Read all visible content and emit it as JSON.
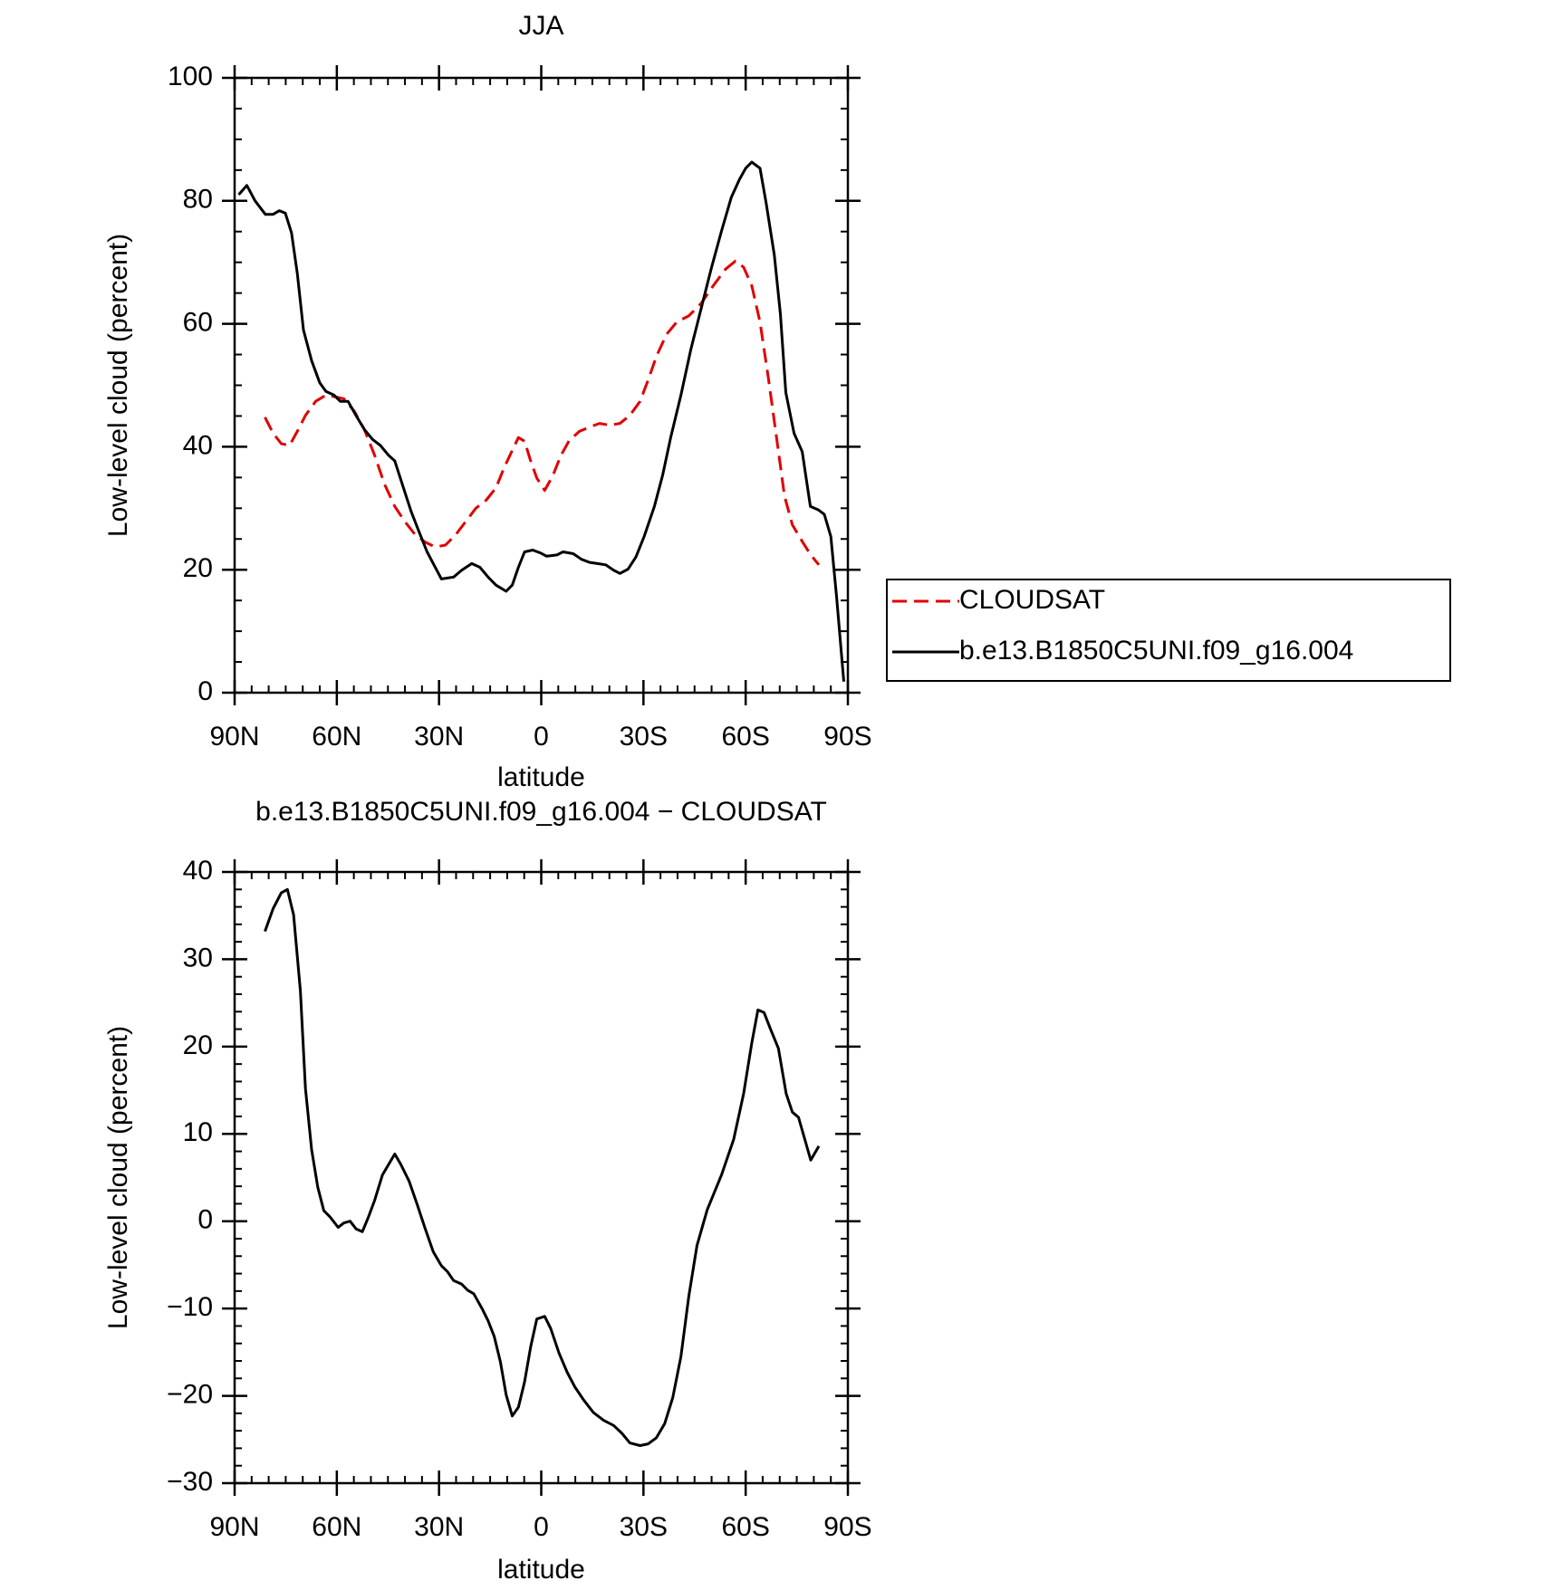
{
  "chart_data": [
    {
      "type": "line",
      "title": "JJA",
      "xlabel": "latitude",
      "ylabel": "Low-level cloud (percent)",
      "xlim": [
        90,
        -90
      ],
      "xticks": [
        {
          "value": 90,
          "label": "90N"
        },
        {
          "value": 60,
          "label": "60N"
        },
        {
          "value": 30,
          "label": "30N"
        },
        0,
        {
          "value": -30,
          "label": "30S"
        },
        {
          "value": -60,
          "label": "60S"
        },
        {
          "value": -90,
          "label": "90S"
        }
      ],
      "ylim": [
        0,
        100
      ],
      "yticks": [
        0,
        20,
        40,
        60,
        80,
        100
      ],
      "legend": "right",
      "series": [
        {
          "name": "CLOUDSAT",
          "color": "#e00000",
          "linestyle": "dashed",
          "x": [
            81.1,
            78.7,
            76.3,
            73.9,
            71.6,
            69.2,
            66.2,
            63.2,
            60.2,
            57.9,
            54.9,
            51.9,
            48.9,
            46,
            43,
            40,
            37,
            34.1,
            31.1,
            28.1,
            25.1,
            22.2,
            19.2,
            16.2,
            13.3,
            10.9,
            8.5,
            6.7,
            4.9,
            3.1,
            1.3,
            -1,
            -3.4,
            -5.8,
            -8.2,
            -11.2,
            -14.2,
            -17.1,
            -20.1,
            -23.1,
            -26,
            -29,
            -31.4,
            -33.8,
            -36.8,
            -39.8,
            -43.3,
            -46.9,
            -50.5,
            -54.1,
            -57,
            -59.4,
            -61.8,
            -64.2,
            -66.6,
            -69,
            -71.4,
            -73.7,
            -76.7,
            -79.1,
            -81.5
          ],
          "values": [
            44.8,
            42.2,
            40.5,
            40.2,
            42.5,
            45.1,
            47.4,
            48.4,
            48.1,
            47.8,
            45.8,
            42.8,
            38.6,
            33.9,
            30.3,
            27.8,
            25.7,
            24.5,
            23.7,
            24,
            25.7,
            27.8,
            30,
            31.3,
            33.3,
            36.6,
            39.4,
            41.5,
            40.9,
            37.7,
            34.9,
            32.9,
            35.3,
            38.6,
            41,
            42.5,
            43.2,
            43.8,
            43.5,
            43.8,
            45.1,
            47.4,
            50.9,
            54.7,
            58.3,
            60.3,
            61.3,
            63.3,
            66.2,
            68.9,
            70.2,
            69.2,
            66.2,
            60.3,
            51.4,
            41.8,
            32,
            27.3,
            24.5,
            22.4,
            20.8
          ]
        },
        {
          "name": "b.e13.B1850C5UNI.f09_g16.004",
          "color": "#000000",
          "linestyle": "solid",
          "x": [
            88.8,
            86.4,
            84,
            81,
            78.7,
            76.9,
            75.1,
            73.3,
            71.6,
            69.8,
            67.4,
            65,
            63.2,
            60.8,
            59,
            56.7,
            54.3,
            51.9,
            49.5,
            47.2,
            44.8,
            43,
            40.6,
            38.2,
            35.9,
            33.5,
            31.7,
            29.3,
            25.7,
            23.4,
            20.4,
            18,
            15.6,
            13.3,
            10.3,
            8.5,
            6.7,
            4.9,
            2.5,
            0.1,
            -1.6,
            -4.6,
            -6.4,
            -9.4,
            -11.8,
            -14.2,
            -16.5,
            -18.9,
            -21.3,
            -23.1,
            -25.5,
            -27.8,
            -30.2,
            -33.2,
            -35.6,
            -38,
            -41,
            -43.9,
            -46.9,
            -49.9,
            -52.9,
            -55.8,
            -58.2,
            -60,
            -61.8,
            -64.2,
            -66,
            -68.4,
            -70.2,
            -71.8,
            -74.2,
            -76.6,
            -79,
            -81.4,
            -83.1,
            -85,
            -86.7,
            -88.8
          ],
          "values": [
            81,
            82.5,
            80,
            77.8,
            77.8,
            78.4,
            78,
            74.8,
            68.2,
            59,
            54,
            50.4,
            49,
            48.4,
            47.4,
            47.4,
            45,
            42.8,
            41.2,
            40.2,
            38.6,
            37.7,
            33.6,
            29.5,
            26.2,
            22.9,
            21,
            18.5,
            18.8,
            19.9,
            21,
            20.4,
            18.8,
            17.5,
            16.5,
            17.5,
            20.4,
            22.9,
            23.2,
            22.7,
            22.2,
            22.4,
            22.9,
            22.6,
            21.7,
            21.2,
            21,
            20.8,
            19.9,
            19.4,
            20.1,
            22.1,
            25.4,
            30.3,
            35.3,
            41.5,
            48.4,
            55.8,
            62.4,
            69,
            75.1,
            80.6,
            83.5,
            85.3,
            86.3,
            85.3,
            79.7,
            71.2,
            61.6,
            48.8,
            42.2,
            39.2,
            30.3,
            29.7,
            29,
            25.4,
            15.5,
            1.8
          ]
        }
      ]
    },
    {
      "type": "line",
      "title": "b.e13.B1850C5UNI.f09_g16.004 − CLOUDSAT",
      "xlabel": "latitude",
      "ylabel": "Low-level cloud (percent)",
      "xlim": [
        90,
        -90
      ],
      "xticks": [
        {
          "value": 90,
          "label": "90N"
        },
        {
          "value": 60,
          "label": "60N"
        },
        {
          "value": 30,
          "label": "30N"
        },
        0,
        {
          "value": -30,
          "label": "30S"
        },
        {
          "value": -60,
          "label": "60S"
        },
        {
          "value": -90,
          "label": "90S"
        }
      ],
      "ylim": [
        -30,
        40
      ],
      "yticks": [
        {
          "value": -30,
          "label": "−30"
        },
        {
          "value": -20,
          "label": "−20"
        },
        {
          "value": -10,
          "label": "−10"
        },
        0,
        10,
        20,
        30,
        40
      ],
      "color": "#000000",
      "x": [
        81.1,
        78.7,
        76.3,
        74.5,
        72.7,
        70.7,
        69.2,
        67.4,
        65.6,
        63.8,
        62,
        59.6,
        57.9,
        56.1,
        54.3,
        52.5,
        50.7,
        48.9,
        46.6,
        44.8,
        43,
        41.2,
        38.8,
        36.4,
        34.1,
        31.7,
        29.3,
        27.5,
        25.7,
        23.4,
        21.6,
        19.8,
        17.4,
        15.6,
        13.8,
        12,
        10.3,
        8.5,
        6.7,
        4.9,
        3.1,
        1.3,
        -1,
        -2.8,
        -5.2,
        -7.6,
        -9.9,
        -12.3,
        -15.3,
        -18.3,
        -21.3,
        -23.7,
        -26,
        -29,
        -31.4,
        -33.8,
        -36.2,
        -38.6,
        -41,
        -43.3,
        -45.7,
        -48.7,
        -52.9,
        -56.5,
        -59.4,
        -61.8,
        -63.6,
        -65.4,
        -67.2,
        -69.6,
        -71.9,
        -73.7,
        -75.5,
        -79.1,
        -81.5
      ],
      "values": [
        33.2,
        35.8,
        37.6,
        38,
        35.1,
        26.4,
        15.2,
        8.2,
        3.9,
        1.2,
        0.5,
        -0.7,
        -0.2,
        0,
        -0.9,
        -1.2,
        0.5,
        2.4,
        5.3,
        6.5,
        7.7,
        6.5,
        4.6,
        1.9,
        -0.8,
        -3.5,
        -5.1,
        -5.8,
        -6.8,
        -7.2,
        -7.9,
        -8.3,
        -10,
        -11.4,
        -13.2,
        -16.1,
        -19.9,
        -22.3,
        -21.3,
        -18.4,
        -14.4,
        -11.2,
        -10.9,
        -12.3,
        -15.1,
        -17.3,
        -19,
        -20.4,
        -21.9,
        -22.8,
        -23.4,
        -24.3,
        -25.4,
        -25.7,
        -25.5,
        -24.8,
        -23.2,
        -20.2,
        -15.5,
        -8.6,
        -2.8,
        1.3,
        5.3,
        9.4,
        14.6,
        20.4,
        24.2,
        23.9,
        22.1,
        19.8,
        14.6,
        12.5,
        11.9,
        7,
        8.6
      ]
    }
  ]
}
